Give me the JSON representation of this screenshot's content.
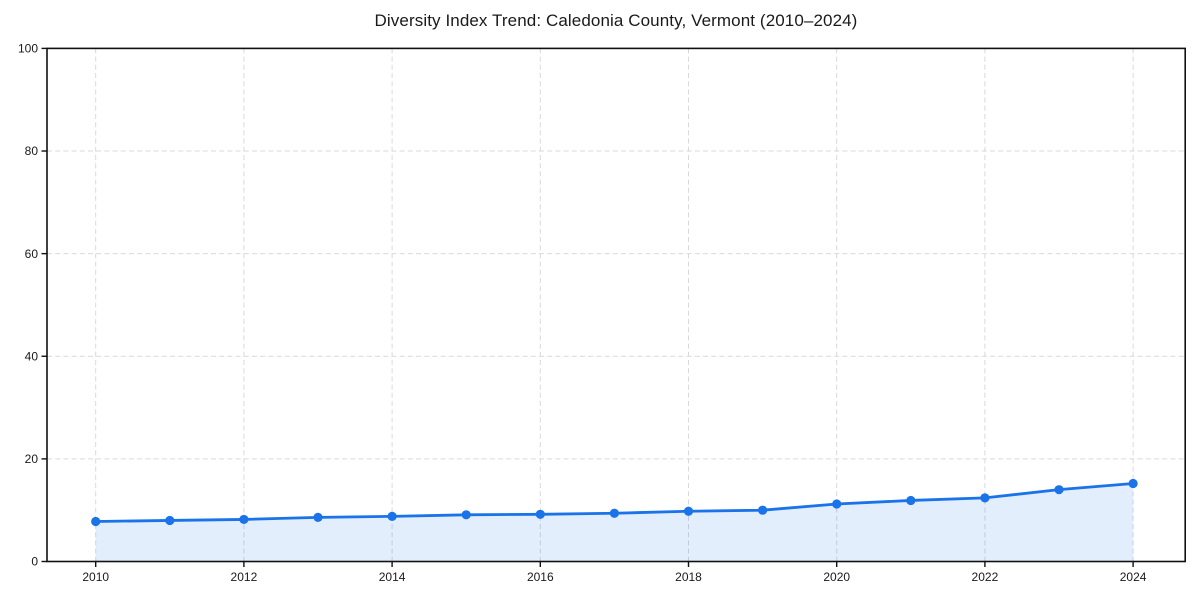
{
  "page": {
    "background": "#ffffff"
  },
  "chart_data": {
    "type": "line",
    "title": "Diversity Index Trend: Caledonia County, Vermont (2010–2024)",
    "x": [
      2010,
      2011,
      2012,
      2013,
      2014,
      2015,
      2016,
      2017,
      2018,
      2019,
      2020,
      2021,
      2022,
      2023,
      2024
    ],
    "series": [
      {
        "name": "Diversity Index",
        "values": [
          7.8,
          8.0,
          8.2,
          8.6,
          8.8,
          9.1,
          9.2,
          9.4,
          9.8,
          10.0,
          11.2,
          11.9,
          12.4,
          14.0,
          15.2
        ]
      }
    ],
    "xlabel": "",
    "ylabel": "",
    "xlim": [
      2009.3,
      2024.7
    ],
    "ylim": [
      0,
      100
    ],
    "xticks": [
      2010,
      2012,
      2014,
      2016,
      2018,
      2020,
      2022,
      2024
    ],
    "yticks": [
      0,
      20,
      40,
      60,
      80,
      100
    ],
    "grid": true,
    "grid_style": "dashed",
    "legend": false,
    "marker": "circle",
    "area_fill": true,
    "colors": {
      "line": "#1a73e8",
      "fill": "rgba(26,115,232,0.12)",
      "grid": "#d9d9d9",
      "spine": "#111111",
      "text": "#1a1a1a"
    }
  }
}
